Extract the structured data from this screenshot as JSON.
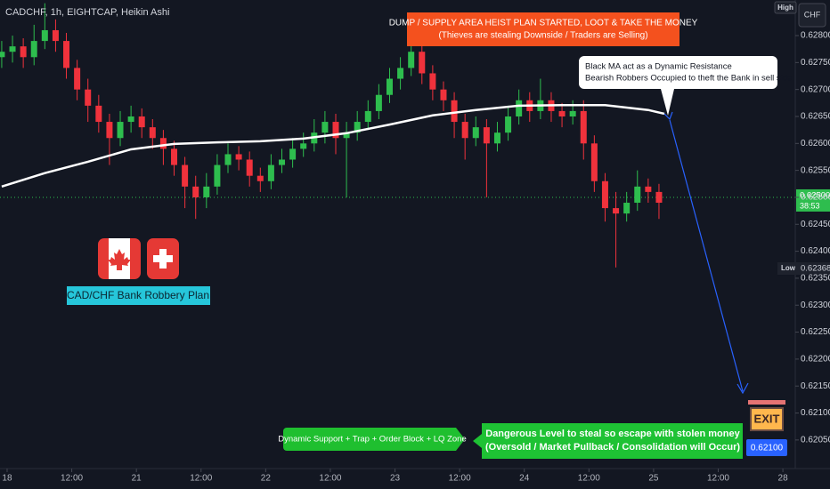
{
  "chart_data": {
    "type": "candlestick",
    "title": "CADCHF, 1h, EIGHTCAP, Heikin Ashi",
    "up_color": "#2ebd4e",
    "down_color": "#f0323c",
    "x": [
      -1,
      1,
      3,
      5,
      7,
      9,
      11,
      13,
      15,
      17,
      19,
      21,
      23,
      25,
      27,
      29,
      31,
      33,
      35,
      37,
      39,
      41,
      43,
      45,
      47,
      49,
      51,
      53,
      55,
      57,
      59,
      61,
      63,
      65,
      67,
      69,
      71,
      73,
      75,
      77,
      79,
      81,
      83,
      85,
      87,
      89,
      91,
      93,
      95,
      97,
      99,
      101,
      103,
      105,
      107,
      109,
      111,
      113,
      115,
      117,
      119,
      121
    ],
    "open": [
      0.6276,
      0.6277,
      0.6278,
      0.6276,
      0.6279,
      0.6281,
      0.6279,
      0.6274,
      0.627,
      0.6267,
      0.6264,
      0.6261,
      0.6264,
      0.6265,
      0.6263,
      0.6261,
      0.6259,
      0.6256,
      0.6252,
      0.625,
      0.6252,
      0.6256,
      0.6258,
      0.6257,
      0.6254,
      0.6253,
      0.6256,
      0.6257,
      0.6259,
      0.626,
      0.6262,
      0.6264,
      0.6261,
      0.6262,
      0.6264,
      0.6266,
      0.6269,
      0.6272,
      0.6274,
      0.6277,
      0.6273,
      0.627,
      0.6268,
      0.6264,
      0.6261,
      0.6263,
      0.626,
      0.6262,
      0.6265,
      0.6268,
      0.6266,
      0.6268,
      0.6266,
      0.6265,
      0.6266,
      0.626,
      0.6253,
      0.6248,
      0.6247,
      0.6249,
      0.6252,
      0.6251
    ],
    "high": [
      0.6279,
      0.628,
      0.62795,
      0.6282,
      0.6286,
      0.6283,
      0.62805,
      0.62755,
      0.6272,
      0.6269,
      0.62655,
      0.6266,
      0.6267,
      0.62665,
      0.62645,
      0.62625,
      0.62605,
      0.62575,
      0.6254,
      0.62545,
      0.6258,
      0.626,
      0.62595,
      0.62585,
      0.62555,
      0.6258,
      0.6259,
      0.6261,
      0.6262,
      0.62645,
      0.6266,
      0.62655,
      0.6264,
      0.6266,
      0.6268,
      0.6271,
      0.6274,
      0.6276,
      0.6283,
      0.62785,
      0.62745,
      0.62715,
      0.62695,
      0.62655,
      0.6265,
      0.62645,
      0.6264,
      0.6267,
      0.627,
      0.62695,
      0.6272,
      0.62695,
      0.62675,
      0.6268,
      0.6268,
      0.62615,
      0.62545,
      0.6251,
      0.6251,
      0.6255,
      0.62535,
      0.62525
    ],
    "low": [
      0.6274,
      0.6275,
      0.6274,
      0.62745,
      0.62775,
      0.6277,
      0.6272,
      0.6268,
      0.6264,
      0.6262,
      0.6256,
      0.62595,
      0.6262,
      0.6261,
      0.6259,
      0.6256,
      0.6254,
      0.6248,
      0.6246,
      0.6248,
      0.62505,
      0.62545,
      0.6255,
      0.6252,
      0.6251,
      0.62515,
      0.62545,
      0.62555,
      0.62575,
      0.62585,
      0.626,
      0.6258,
      0.625,
      0.62605,
      0.62625,
      0.62645,
      0.62675,
      0.627,
      0.62725,
      0.6271,
      0.6268,
      0.6266,
      0.6261,
      0.6257,
      0.62595,
      0.625,
      0.62585,
      0.62605,
      0.62635,
      0.6264,
      0.62645,
      0.6264,
      0.6263,
      0.62635,
      0.6257,
      0.6251,
      0.62455,
      0.6237,
      0.62455,
      0.62475,
      0.6249,
      0.6246
    ],
    "close": [
      0.6277,
      0.6278,
      0.6276,
      0.6279,
      0.6281,
      0.6279,
      0.6274,
      0.627,
      0.6267,
      0.6264,
      0.6261,
      0.6264,
      0.6265,
      0.6263,
      0.6261,
      0.6259,
      0.6256,
      0.6252,
      0.625,
      0.6252,
      0.6256,
      0.6258,
      0.6257,
      0.6254,
      0.6253,
      0.6256,
      0.6257,
      0.6259,
      0.626,
      0.6262,
      0.6264,
      0.6261,
      0.6262,
      0.6264,
      0.6266,
      0.6269,
      0.6272,
      0.6274,
      0.6277,
      0.6273,
      0.627,
      0.6268,
      0.6264,
      0.6261,
      0.6263,
      0.626,
      0.6262,
      0.6265,
      0.6268,
      0.6266,
      0.6268,
      0.6266,
      0.6265,
      0.6266,
      0.626,
      0.6253,
      0.6248,
      0.6247,
      0.6249,
      0.6252,
      0.6251,
      0.6249
    ],
    "ma": {
      "color": "#ffffff",
      "x": [
        -1,
        7,
        15,
        23,
        31,
        39,
        47,
        55,
        63,
        71,
        79,
        87,
        95,
        103,
        111,
        119,
        122
      ],
      "values": [
        0.6252,
        0.62545,
        0.62566,
        0.62589,
        0.62599,
        0.62602,
        0.62604,
        0.62609,
        0.62619,
        0.62635,
        0.62652,
        0.62662,
        0.6267,
        0.62671,
        0.62671,
        0.62662,
        0.62655
      ]
    },
    "xlim": [
      -1.32,
      146.3
    ],
    "xticks": [
      {
        "value": 0,
        "label": "18"
      },
      {
        "value": 12,
        "label": "12:00"
      },
      {
        "value": 24,
        "label": "21"
      },
      {
        "value": 36,
        "label": "12:00"
      },
      {
        "value": 48,
        "label": "22"
      },
      {
        "value": 60,
        "label": "12:00"
      },
      {
        "value": 72,
        "label": "23"
      },
      {
        "value": 84,
        "label": "12:00"
      },
      {
        "value": 96,
        "label": "24"
      },
      {
        "value": 108,
        "label": "12:00"
      },
      {
        "value": 120,
        "label": "25"
      },
      {
        "value": 132,
        "label": "12:00"
      },
      {
        "value": 144,
        "label": "28"
      }
    ],
    "ylim": [
      0.61997,
      0.62866
    ],
    "yticks": [
      {
        "value": 0.628,
        "label": "0.62800"
      },
      {
        "value": 0.6275,
        "label": "0.62750"
      },
      {
        "value": 0.627,
        "label": "0.62700"
      },
      {
        "value": 0.6265,
        "label": "0.62650"
      },
      {
        "value": 0.626,
        "label": "0.62600"
      },
      {
        "value": 0.6255,
        "label": "0.62550"
      },
      {
        "value": 0.625,
        "label": "0.62500"
      },
      {
        "value": 0.6245,
        "label": "0.62450"
      },
      {
        "value": 0.624,
        "label": "0.62400"
      },
      {
        "value": 0.6235,
        "label": "0.62350"
      },
      {
        "value": 0.623,
        "label": "0.62300"
      },
      {
        "value": 0.6225,
        "label": "0.62250"
      },
      {
        "value": 0.622,
        "label": "0.62200"
      },
      {
        "value": 0.6215,
        "label": "0.62150"
      },
      {
        "value": 0.621,
        "label": "0.62100"
      },
      {
        "value": 0.6205,
        "label": "0.62050"
      }
    ],
    "grid": false,
    "currency": "CHF",
    "high_tag": "High",
    "low_tag": "Low",
    "last_price": {
      "value": 0.625,
      "label": "0.62500"
    },
    "countdown": "38:53",
    "low_price": {
      "value": 0.62368,
      "label": "0.62368"
    },
    "annotations": {
      "supply": [
        "DUMP / SUPPLY AREA HEIST PLAN STARTED, LOOT & TAKE THE MONEY",
        "(Thieves are stealing Downside / Traders are Selling)"
      ],
      "ma_note": [
        "Black MA act as a Dynamic Resistance",
        "Bearish Robbers Occupied to theft the Bank in sell side"
      ],
      "plan_label": "CAD/CHF Bank Robbery Plan",
      "support_zone": "Dynamic Support + Trap + Order Block + LQ Zone",
      "danger": [
        "Dangerous Level to steal so escape with stolen money",
        "(Oversold / Market Pullback / Consolidation will Occur)"
      ],
      "exit_sign": "EXIT",
      "exit_price_label": "0.62100"
    }
  }
}
